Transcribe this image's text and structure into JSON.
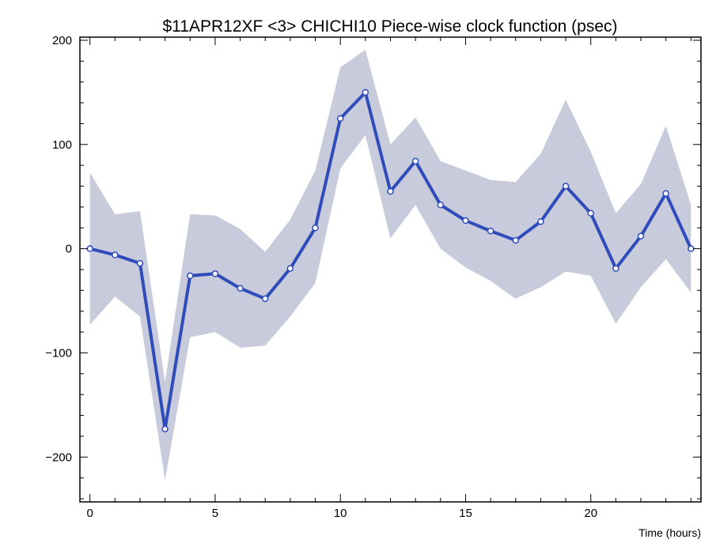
{
  "chart_data": {
    "type": "line",
    "title": "$11APR12XF <3>  CHICHI10  Piece-wise clock function (psec)",
    "xlabel": "Time (hours)",
    "ylabel": "",
    "xlim": [
      -0.4,
      24.4
    ],
    "ylim": [
      -243,
      203
    ],
    "xticks": [
      0,
      5,
      10,
      15,
      20
    ],
    "yticks": [
      -200,
      -100,
      0,
      100,
      200
    ],
    "grid": false,
    "legend": "none",
    "colors": {
      "line": "#2f4cba",
      "band": "#c7cbdb",
      "marker_fill": "#ffffff",
      "axes": "#000000"
    },
    "series": [
      {
        "x": [
          0,
          1,
          2,
          3,
          4,
          5,
          6,
          7,
          8,
          9,
          10,
          11,
          12,
          13,
          14,
          15,
          16,
          17,
          18,
          19,
          20,
          21,
          22,
          23,
          24
        ],
        "values": [
          0,
          -6,
          -14,
          -173,
          -26,
          -24,
          -38,
          -48,
          -19,
          20,
          125,
          150,
          55,
          84,
          42,
          27,
          17,
          8,
          26,
          60,
          34,
          -19,
          12,
          53,
          0
        ],
        "upper": [
          73,
          33,
          36,
          -128,
          33,
          32,
          19,
          -3,
          28,
          75,
          174,
          191,
          100,
          126,
          84,
          75,
          66,
          64,
          91,
          143,
          93,
          34,
          62,
          118,
          42
        ],
        "lower": [
          -73,
          -46,
          -65,
          -222,
          -85,
          -80,
          -95,
          -93,
          -65,
          -33,
          77,
          109,
          10,
          42,
          0,
          -18,
          -31,
          -48,
          -37,
          -22,
          -26,
          -72,
          -37,
          -10,
          -42
        ]
      }
    ]
  }
}
